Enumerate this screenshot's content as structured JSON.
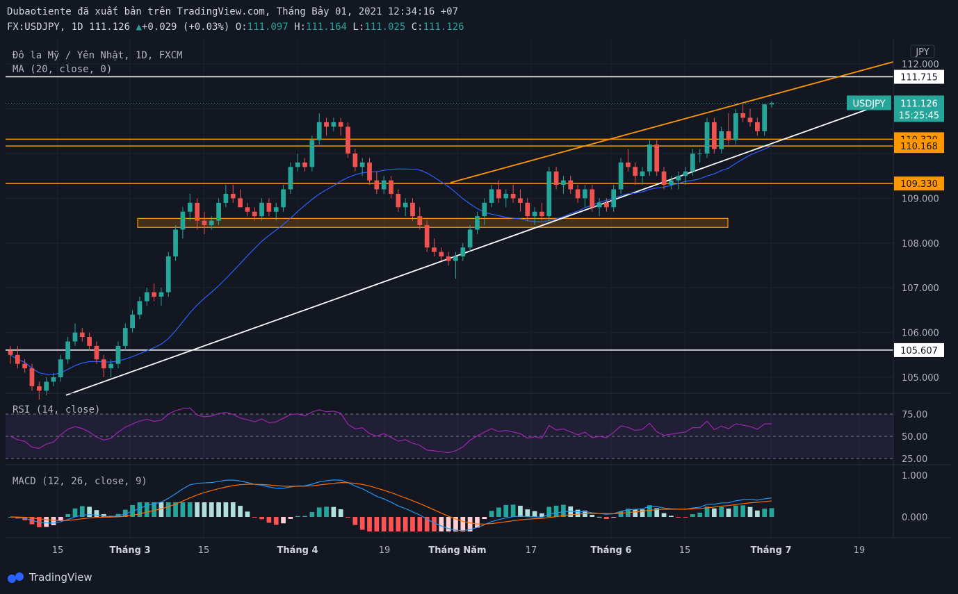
{
  "header": {
    "line1": "Dubaotiente đã xuất bản trên TradingView.com, Tháng Bảy 01, 2021 12:34:16 +07",
    "symbol": "FX:USDJPY, 1D",
    "last": "111.126",
    "arrow": "▲",
    "change": "+0.029 (+0.03%)",
    "o_label": "O:",
    "o": "111.097",
    "h_label": "H:",
    "h": "111.164",
    "l_label": "L:",
    "l": "111.025",
    "c_label": "C:",
    "c": "111.126"
  },
  "pane_labels": {
    "main_title": "Đô la Mỹ / Yên Nhật, 1D, FXCM",
    "ma": "MA (20, close, 0)",
    "rsi": "RSI (14, close)",
    "macd": "MACD (12, 26, close, 9)",
    "currency": "JPY"
  },
  "price_badge": {
    "symbol": "USDJPY",
    "price": "111.126",
    "countdown": "15:25:45"
  },
  "logo": {
    "text": "TradingView",
    "icon": "tradingview-logo-icon"
  },
  "colors": {
    "background": "#131722",
    "up": "#26a69a",
    "down": "#ef5350",
    "ma": "#2962ff",
    "levels": "#ff9800",
    "rsi": "#9c27b0",
    "macd": "#2196f3",
    "signal": "#ff6d00"
  },
  "chart_data": {
    "type": "candlestick",
    "price_axis": {
      "ticks": [
        "112.000",
        "109.000",
        "108.000",
        "107.000",
        "106.000",
        "105.000"
      ]
    },
    "x_axis": {
      "labels": [
        "15",
        "Tháng 3",
        "15",
        "Tháng 4",
        "19",
        "Tháng Năm",
        "17",
        "Tháng 6",
        "15",
        "Tháng 7",
        "19"
      ]
    },
    "horizontal_levels": [
      {
        "value": "111.715",
        "color": "white"
      },
      {
        "value": "110.320",
        "color": "orange"
      },
      {
        "value": "110.168",
        "color": "orange"
      },
      {
        "value": "109.330",
        "color": "orange"
      },
      {
        "value": "105.607",
        "color": "white"
      }
    ],
    "support_zone": [
      108.35,
      108.55
    ],
    "candles": [
      [
        105.6,
        105.7,
        105.3,
        105.5
      ],
      [
        105.5,
        105.7,
        105.2,
        105.3
      ],
      [
        105.3,
        105.4,
        105.1,
        105.2
      ],
      [
        105.2,
        105.3,
        104.7,
        104.8
      ],
      [
        104.8,
        104.9,
        104.5,
        104.7
      ],
      [
        104.7,
        105.0,
        104.6,
        104.9
      ],
      [
        104.9,
        105.1,
        104.8,
        105.0
      ],
      [
        105.0,
        105.5,
        104.9,
        105.4
      ],
      [
        105.4,
        105.9,
        105.3,
        105.8
      ],
      [
        105.8,
        106.2,
        105.7,
        106.0
      ],
      [
        106.0,
        106.1,
        105.8,
        105.9
      ],
      [
        105.9,
        106.0,
        105.6,
        105.7
      ],
      [
        105.7,
        105.8,
        105.3,
        105.4
      ],
      [
        105.4,
        105.5,
        105.0,
        105.2
      ],
      [
        105.2,
        105.4,
        105.0,
        105.3
      ],
      [
        105.3,
        105.8,
        105.2,
        105.7
      ],
      [
        105.7,
        106.2,
        105.6,
        106.1
      ],
      [
        106.1,
        106.5,
        106.0,
        106.4
      ],
      [
        106.4,
        106.8,
        106.3,
        106.7
      ],
      [
        106.7,
        107.0,
        106.6,
        106.9
      ],
      [
        106.9,
        107.1,
        106.7,
        106.8
      ],
      [
        106.8,
        107.0,
        106.6,
        106.9
      ],
      [
        106.9,
        107.8,
        106.8,
        107.7
      ],
      [
        107.7,
        108.4,
        107.6,
        108.3
      ],
      [
        108.3,
        108.8,
        108.1,
        108.7
      ],
      [
        108.7,
        109.1,
        108.5,
        108.9
      ],
      [
        108.9,
        109.0,
        108.3,
        108.5
      ],
      [
        108.5,
        108.7,
        108.2,
        108.4
      ],
      [
        108.4,
        108.6,
        108.3,
        108.5
      ],
      [
        108.5,
        109.0,
        108.4,
        108.9
      ],
      [
        108.9,
        109.3,
        108.8,
        109.1
      ],
      [
        109.1,
        109.3,
        108.9,
        109.0
      ],
      [
        109.0,
        109.2,
        108.8,
        108.8
      ],
      [
        108.8,
        108.9,
        108.6,
        108.7
      ],
      [
        108.7,
        108.8,
        108.5,
        108.6
      ],
      [
        108.6,
        109.0,
        108.5,
        108.9
      ],
      [
        108.9,
        109.0,
        108.6,
        108.7
      ],
      [
        108.7,
        108.9,
        108.5,
        108.8
      ],
      [
        108.8,
        109.3,
        108.7,
        109.2
      ],
      [
        109.2,
        109.8,
        109.1,
        109.7
      ],
      [
        109.7,
        110.0,
        109.6,
        109.8
      ],
      [
        109.8,
        109.9,
        109.6,
        109.7
      ],
      [
        109.7,
        110.4,
        109.6,
        110.3
      ],
      [
        110.3,
        110.9,
        110.2,
        110.7
      ],
      [
        110.7,
        110.8,
        110.4,
        110.6
      ],
      [
        110.6,
        110.8,
        110.5,
        110.7
      ],
      [
        110.7,
        110.8,
        110.4,
        110.6
      ],
      [
        110.6,
        110.7,
        109.9,
        110.0
      ],
      [
        110.0,
        110.1,
        109.6,
        109.7
      ],
      [
        109.7,
        109.9,
        109.5,
        109.8
      ],
      [
        109.8,
        109.9,
        109.3,
        109.4
      ],
      [
        109.4,
        109.6,
        109.1,
        109.2
      ],
      [
        109.2,
        109.5,
        109.1,
        109.4
      ],
      [
        109.4,
        109.5,
        109.0,
        109.1
      ],
      [
        109.1,
        109.2,
        108.7,
        108.8
      ],
      [
        108.8,
        109.0,
        108.6,
        108.9
      ],
      [
        108.9,
        109.0,
        108.5,
        108.6
      ],
      [
        108.6,
        108.8,
        108.3,
        108.4
      ],
      [
        108.4,
        108.5,
        107.8,
        107.9
      ],
      [
        107.9,
        108.1,
        107.7,
        107.8
      ],
      [
        107.8,
        107.9,
        107.6,
        107.7
      ],
      [
        107.7,
        107.8,
        107.5,
        107.6
      ],
      [
        107.6,
        107.8,
        107.2,
        107.7
      ],
      [
        107.7,
        108.0,
        107.6,
        107.9
      ],
      [
        107.9,
        108.4,
        107.8,
        108.3
      ],
      [
        108.3,
        108.7,
        108.2,
        108.6
      ],
      [
        108.6,
        109.0,
        108.4,
        108.9
      ],
      [
        108.9,
        109.3,
        108.8,
        109.2
      ],
      [
        109.2,
        109.4,
        108.9,
        109.0
      ],
      [
        109.0,
        109.2,
        108.8,
        109.1
      ],
      [
        109.1,
        109.3,
        108.9,
        109.0
      ],
      [
        109.0,
        109.2,
        108.7,
        108.9
      ],
      [
        108.9,
        109.0,
        108.5,
        108.6
      ],
      [
        108.6,
        108.8,
        108.4,
        108.7
      ],
      [
        108.7,
        108.9,
        108.5,
        108.6
      ],
      [
        108.6,
        109.7,
        108.5,
        109.6
      ],
      [
        109.6,
        109.7,
        109.2,
        109.3
      ],
      [
        109.3,
        109.5,
        109.1,
        109.4
      ],
      [
        109.4,
        109.5,
        109.1,
        109.2
      ],
      [
        109.2,
        109.3,
        108.9,
        109.0
      ],
      [
        109.0,
        109.3,
        108.8,
        109.2
      ],
      [
        109.2,
        109.3,
        108.7,
        108.8
      ],
      [
        108.8,
        109.0,
        108.6,
        108.9
      ],
      [
        108.9,
        109.0,
        108.7,
        108.8
      ],
      [
        108.8,
        109.3,
        108.7,
        109.2
      ],
      [
        109.2,
        109.9,
        109.1,
        109.8
      ],
      [
        109.8,
        110.1,
        109.6,
        109.7
      ],
      [
        109.7,
        109.8,
        109.3,
        109.5
      ],
      [
        109.5,
        109.7,
        109.3,
        109.6
      ],
      [
        109.6,
        110.3,
        109.5,
        110.2
      ],
      [
        110.2,
        110.3,
        109.5,
        109.6
      ],
      [
        109.6,
        109.7,
        109.2,
        109.3
      ],
      [
        109.3,
        109.5,
        109.2,
        109.4
      ],
      [
        109.4,
        109.6,
        109.2,
        109.5
      ],
      [
        109.5,
        109.7,
        109.3,
        109.6
      ],
      [
        109.6,
        110.1,
        109.5,
        110.0
      ],
      [
        110.0,
        110.1,
        109.8,
        110.0
      ],
      [
        110.0,
        110.8,
        109.9,
        110.7
      ],
      [
        110.7,
        110.8,
        110.0,
        110.1
      ],
      [
        110.1,
        110.6,
        110.0,
        110.5
      ],
      [
        110.5,
        110.9,
        110.2,
        110.3
      ],
      [
        110.3,
        111.0,
        110.2,
        110.9
      ],
      [
        110.9,
        111.1,
        110.7,
        110.8
      ],
      [
        110.8,
        111.0,
        110.6,
        110.7
      ],
      [
        110.7,
        110.8,
        110.4,
        110.5
      ],
      [
        110.5,
        111.1,
        110.4,
        111.1
      ],
      [
        111.097,
        111.164,
        111.025,
        111.126
      ]
    ],
    "rsi_axis": [
      "75.00",
      "50.00",
      "25.00"
    ],
    "macd_axis": [
      "1.000",
      "0.000"
    ]
  }
}
